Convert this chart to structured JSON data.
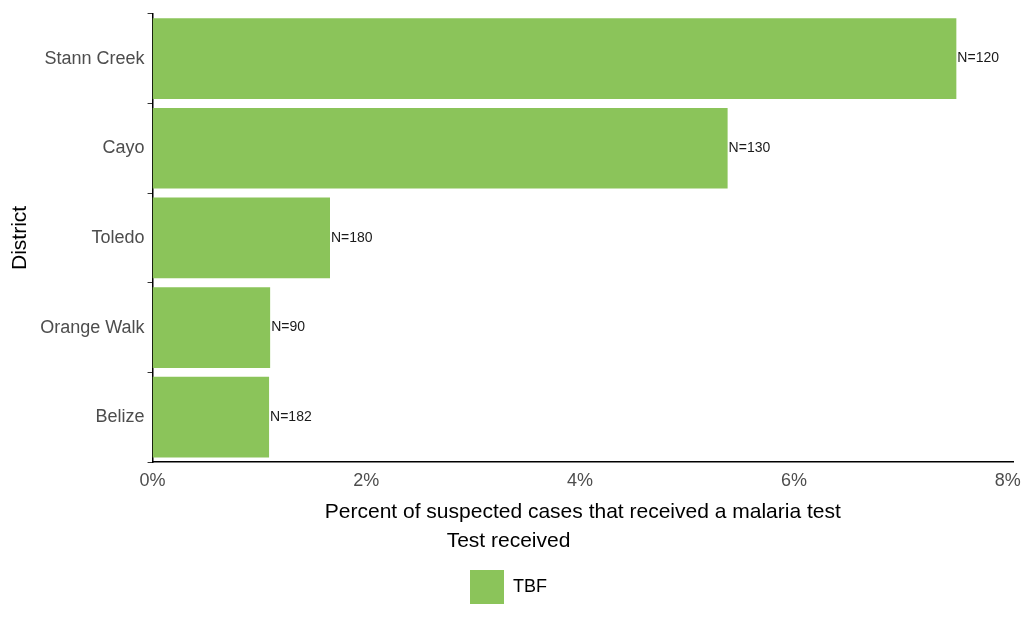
{
  "chart_data": {
    "type": "bar",
    "orientation": "horizontal",
    "xlabel": "Percent of suspected cases that received a malaria test",
    "ylabel": "District",
    "legend_title": "Test received",
    "legend": "bottom",
    "grid": false,
    "categories": [
      "Stann Creek",
      "Cayo",
      "Toledo",
      "Orange Walk",
      "Belize"
    ],
    "series": [
      {
        "name": "TBF",
        "color": "#8bc45a",
        "values": [
          7.52,
          5.38,
          1.66,
          1.1,
          1.09
        ]
      }
    ],
    "annotations": [
      {
        "text": "N=120",
        "x": 7.52,
        "y": "Stann Creek"
      },
      {
        "text": "N=130",
        "x": 5.38,
        "y": "Cayo"
      },
      {
        "text": "N=180",
        "x": 1.66,
        "y": "Toledo"
      },
      {
        "text": "N=90",
        "x": 1.1,
        "y": "Orange Walk"
      },
      {
        "text": "N=182",
        "x": 1.09,
        "y": "Belize"
      }
    ],
    "xlim": [
      0,
      8.05
    ],
    "xticks": [
      {
        "value": 0,
        "label": "0%"
      },
      {
        "value": 2,
        "label": "2%"
      },
      {
        "value": 4,
        "label": "4%"
      },
      {
        "value": 6,
        "label": "6%"
      },
      {
        "value": 8,
        "label": "8%"
      }
    ]
  }
}
